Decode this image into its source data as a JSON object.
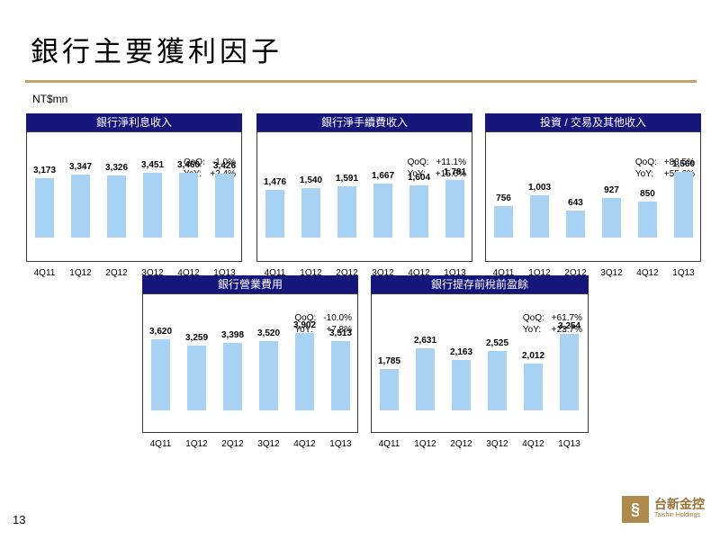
{
  "page": {
    "title": "銀行主要獲利因子",
    "unit": "NT$mn",
    "page_number": "13",
    "brand_colors": {
      "header": "#16167a",
      "bar": "#a8d2f3",
      "rule": "#c4a66b"
    }
  },
  "logo": {
    "cn": "台新金控",
    "en": "Taishin Holdings",
    "icon": "taishin-logo-icon"
  },
  "chart_data": [
    {
      "type": "bar",
      "title": "銀行淨利息收入",
      "categories": [
        "4Q11",
        "1Q12",
        "2Q12",
        "3Q12",
        "4Q12",
        "1Q13"
      ],
      "values": [
        3173,
        3347,
        3326,
        3451,
        3460,
        3426
      ],
      "value_labels": [
        "3,173",
        "3,347",
        "3,326",
        "3,451",
        "3,460",
        "3,426"
      ],
      "stats": [
        {
          "label": "QoQ:",
          "value": "-1.0%"
        },
        {
          "label": "YoY:",
          "value": "+2.4%"
        }
      ],
      "ylim": [
        0,
        5200
      ]
    },
    {
      "type": "bar",
      "title": "銀行淨手續費收入",
      "categories": [
        "4Q11",
        "1Q12",
        "2Q12",
        "3Q12",
        "4Q12",
        "1Q13"
      ],
      "values": [
        1476,
        1540,
        1591,
        1667,
        1604,
        1781
      ],
      "value_labels": [
        "1,476",
        "1,540",
        "1,591",
        "1,667",
        "1,604",
        "1,781"
      ],
      "stats": [
        {
          "label": "QoQ:",
          "value": "+11.1%"
        },
        {
          "label": "YoY:",
          "value": "+15.6%"
        }
      ],
      "ylim": [
        0,
        3000
      ]
    },
    {
      "type": "bar",
      "title": "投資 / 交易及其他收入",
      "categories": [
        "4Q11",
        "1Q12",
        "2Q12",
        "3Q12",
        "4Q12",
        "1Q13"
      ],
      "values": [
        756,
        1003,
        643,
        927,
        850,
        1560
      ],
      "value_labels": [
        "756",
        "1,003",
        "643",
        "927",
        "850",
        "1,560"
      ],
      "stats": [
        {
          "label": "QoQ:",
          "value": "+83.5%"
        },
        {
          "label": "YoY:",
          "value": "+55.6%"
        }
      ],
      "ylim": [
        0,
        2300
      ]
    },
    {
      "type": "bar",
      "title": "銀行營業費用",
      "categories": [
        "4Q11",
        "1Q12",
        "2Q12",
        "3Q12",
        "4Q12",
        "1Q13"
      ],
      "values": [
        3620,
        3259,
        3398,
        3520,
        3902,
        3513
      ],
      "value_labels": [
        "3,620",
        "3,259",
        "3,398",
        "3,520",
        "3,902",
        "3,513"
      ],
      "stats": [
        {
          "label": "QoQ:",
          "value": "-10.0%"
        },
        {
          "label": "YoY:",
          "value": "+7.8%"
        }
      ],
      "ylim": [
        0,
        5100
      ]
    },
    {
      "type": "bar",
      "title": "銀行提存前稅前盈餘",
      "categories": [
        "4Q11",
        "1Q12",
        "2Q12",
        "3Q12",
        "4Q12",
        "1Q13"
      ],
      "values": [
        1785,
        2631,
        2163,
        2525,
        2012,
        3254
      ],
      "value_labels": [
        "1,785",
        "2,631",
        "2,163",
        "2,525",
        "2,012",
        "3,254"
      ],
      "stats": [
        {
          "label": "QoQ:",
          "value": "+61.7%"
        },
        {
          "label": "YoY:",
          "value": "+23.7%"
        }
      ],
      "ylim": [
        0,
        4300
      ]
    }
  ]
}
